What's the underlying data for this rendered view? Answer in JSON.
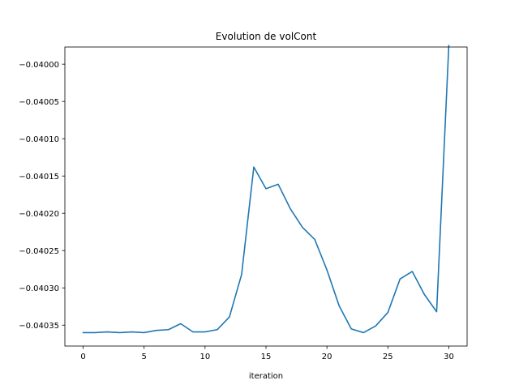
{
  "chart_data": {
    "type": "line",
    "title": "Evolution de volCont",
    "xlabel": "iteration",
    "ylabel": "",
    "x_ticks": [
      "0",
      "5",
      "10",
      "15",
      "20",
      "25",
      "30"
    ],
    "y_ticks": [
      "−0.04035",
      "−0.04030",
      "−0.04025",
      "−0.04020",
      "−0.04015",
      "−0.04010",
      "−0.04005",
      "−0.04000"
    ],
    "xlim": [
      -1.5,
      31.5
    ],
    "ylim": [
      -0.040378,
      -0.039977
    ],
    "grid": false,
    "series": [
      {
        "color": "#1f77b4",
        "x": [
          0,
          1,
          2,
          3,
          4,
          5,
          6,
          7,
          8,
          9,
          10,
          11,
          12,
          13,
          14,
          15,
          16,
          17,
          18,
          19,
          20,
          21,
          22,
          23,
          24,
          25,
          26,
          27,
          28,
          29,
          30
        ],
        "values": [
          -0.04036,
          -0.04036,
          -0.040359,
          -0.04036,
          -0.040359,
          -0.04036,
          -0.040357,
          -0.040356,
          -0.040348,
          -0.040359,
          -0.040359,
          -0.040356,
          -0.040339,
          -0.040282,
          -0.040138,
          -0.040167,
          -0.040161,
          -0.040194,
          -0.040219,
          -0.040235,
          -0.040276,
          -0.040324,
          -0.040355,
          -0.04036,
          -0.040351,
          -0.040333,
          -0.040288,
          -0.040278,
          -0.040309,
          -0.040332,
          -0.039975
        ]
      }
    ]
  }
}
